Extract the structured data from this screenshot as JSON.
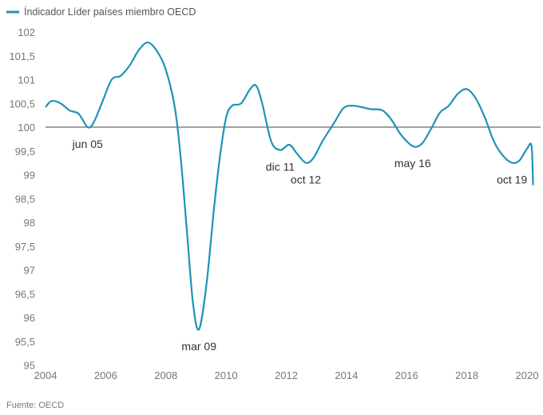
{
  "chart_data": {
    "type": "line",
    "title": "",
    "xlabel": "",
    "ylabel": "",
    "xlim": [
      2004,
      2020
    ],
    "ylim": [
      95,
      102
    ],
    "x_ticks": [
      "2004",
      "2006",
      "2008",
      "2010",
      "2012",
      "2014",
      "2016",
      "2018",
      "2020"
    ],
    "y_ticks": [
      "102",
      "101,5",
      "101",
      "100,5",
      "100",
      "99,5",
      "99",
      "98,5",
      "98",
      "97,5",
      "97",
      "96,5",
      "96",
      "95,5",
      "95"
    ],
    "reference_line": 100,
    "grid": false,
    "legend_position": "top-left",
    "series": [
      {
        "name": "Índicador Líder países miembro OECD",
        "color": "#1f93b6",
        "points": [
          [
            2004.0,
            100.42
          ],
          [
            2004.2,
            100.55
          ],
          [
            2004.5,
            100.5
          ],
          [
            2004.8,
            100.35
          ],
          [
            2005.1,
            100.28
          ],
          [
            2005.4,
            100.0
          ],
          [
            2005.6,
            100.1
          ],
          [
            2005.9,
            100.55
          ],
          [
            2006.2,
            101.0
          ],
          [
            2006.5,
            101.08
          ],
          [
            2006.8,
            101.3
          ],
          [
            2007.1,
            101.62
          ],
          [
            2007.4,
            101.78
          ],
          [
            2007.7,
            101.6
          ],
          [
            2008.0,
            101.2
          ],
          [
            2008.3,
            100.4
          ],
          [
            2008.5,
            99.3
          ],
          [
            2008.7,
            97.8
          ],
          [
            2008.9,
            96.3
          ],
          [
            2009.1,
            95.75
          ],
          [
            2009.35,
            96.7
          ],
          [
            2009.6,
            98.3
          ],
          [
            2009.8,
            99.4
          ],
          [
            2010.0,
            100.2
          ],
          [
            2010.2,
            100.45
          ],
          [
            2010.5,
            100.5
          ],
          [
            2010.8,
            100.8
          ],
          [
            2011.0,
            100.87
          ],
          [
            2011.2,
            100.5
          ],
          [
            2011.5,
            99.7
          ],
          [
            2011.8,
            99.52
          ],
          [
            2012.1,
            99.63
          ],
          [
            2012.35,
            99.45
          ],
          [
            2012.65,
            99.25
          ],
          [
            2012.9,
            99.35
          ],
          [
            2013.2,
            99.7
          ],
          [
            2013.6,
            100.1
          ],
          [
            2013.9,
            100.4
          ],
          [
            2014.2,
            100.45
          ],
          [
            2014.5,
            100.42
          ],
          [
            2014.8,
            100.38
          ],
          [
            2015.2,
            100.35
          ],
          [
            2015.5,
            100.15
          ],
          [
            2015.8,
            99.85
          ],
          [
            2016.2,
            99.6
          ],
          [
            2016.5,
            99.65
          ],
          [
            2016.8,
            99.95
          ],
          [
            2017.1,
            100.3
          ],
          [
            2017.4,
            100.45
          ],
          [
            2017.7,
            100.7
          ],
          [
            2018.0,
            100.8
          ],
          [
            2018.3,
            100.6
          ],
          [
            2018.6,
            100.2
          ],
          [
            2018.9,
            99.7
          ],
          [
            2019.2,
            99.4
          ],
          [
            2019.5,
            99.25
          ],
          [
            2019.75,
            99.3
          ],
          [
            2020.0,
            99.55
          ],
          [
            2020.15,
            99.6
          ],
          [
            2020.2,
            98.78
          ]
        ]
      }
    ],
    "annotations": [
      {
        "text": "jun 05",
        "x": 2005.4,
        "y": 100.0,
        "pos": "below"
      },
      {
        "text": "mar 09",
        "x": 2009.1,
        "y": 95.75,
        "pos": "below"
      },
      {
        "text": "dic 11",
        "x": 2011.8,
        "y": 99.52,
        "pos": "below"
      },
      {
        "text": "oct 12",
        "x": 2012.65,
        "y": 99.25,
        "pos": "below"
      },
      {
        "text": "may 16",
        "x": 2016.2,
        "y": 99.6,
        "pos": "below"
      },
      {
        "text": "oct 19",
        "x": 2019.5,
        "y": 99.25,
        "pos": "below"
      }
    ],
    "source": "Fuente: OECD"
  }
}
